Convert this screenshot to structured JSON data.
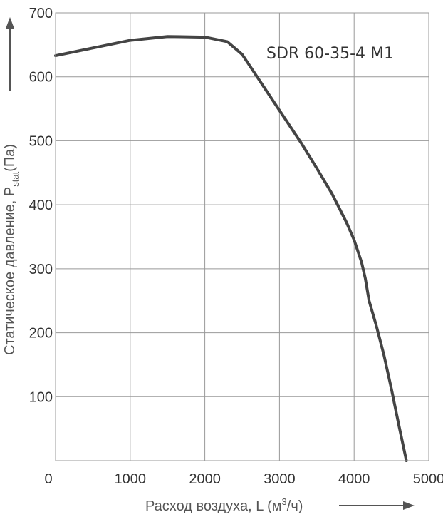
{
  "chart_data": {
    "type": "line",
    "title": "",
    "xlabel_main": "Расход воздуха, L (м",
    "xlabel_sup": "3",
    "xlabel_end": "/ч)",
    "ylabel_main": "Статическое давление, P",
    "ylabel_sub": "stat",
    "ylabel_end": "(Па)",
    "xlim": [
      0,
      5000
    ],
    "ylim": [
      0,
      700
    ],
    "x_ticks": [
      0,
      1000,
      2000,
      3000,
      4000,
      5000
    ],
    "y_ticks": [
      100,
      200,
      300,
      400,
      500,
      600,
      700
    ],
    "y_zero_label": "0",
    "grid": true,
    "series": [
      {
        "name": "SDR 60-35-4 M1",
        "x": [
          0,
          500,
          1000,
          1500,
          2000,
          2300,
          2500,
          2700,
          2900,
          3100,
          3300,
          3500,
          3700,
          3900,
          4000,
          4100,
          4150,
          4200,
          4300,
          4400,
          4500,
          4600,
          4700
        ],
        "y": [
          633,
          645,
          657,
          663,
          662,
          655,
          635,
          600,
          565,
          530,
          495,
          457,
          418,
          372,
          345,
          310,
          285,
          250,
          210,
          165,
          112,
          55,
          0
        ]
      }
    ],
    "colors": {
      "line": "#444444",
      "grid": "#999999",
      "arrow": "#555555"
    }
  }
}
